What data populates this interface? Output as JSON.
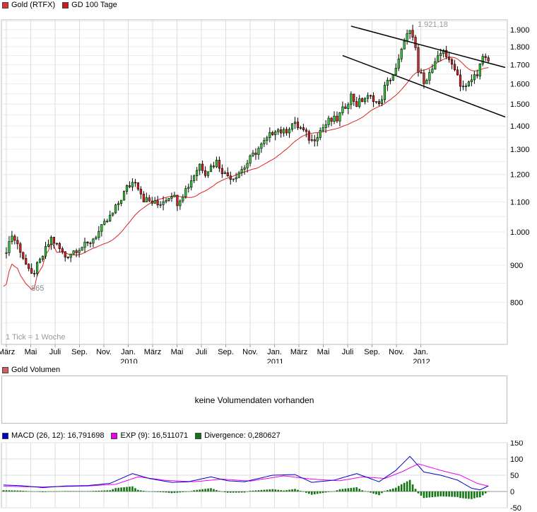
{
  "legend_main": [
    {
      "label": "Gold (RTFX)",
      "color": "#e03030"
    },
    {
      "label": "GD 100 Tage",
      "color": "#d01818"
    }
  ],
  "legend_volume": [
    {
      "label": "Gold Volumen",
      "color": "#d06060"
    }
  ],
  "legend_macd": [
    {
      "label": "MACD (26, 12): 16,791698",
      "color": "#0000cc"
    },
    {
      "label": "EXP (9): 16,511071",
      "color": "#ee00ee"
    },
    {
      "label": "Divergence: 0,280627",
      "color": "#117711"
    }
  ],
  "volume_message": "keine Volumendaten vorhanden",
  "tick_note": "1 Tick = 1 Woche",
  "price_annotations": {
    "low": "865",
    "high": "1.921,18"
  },
  "colors": {
    "up": "#33cc33",
    "down": "#dd2222",
    "ma": "#dd2222",
    "grid": "#dddddd",
    "channel": "#000000",
    "macd": "#0000cc",
    "signal": "#ee00ee",
    "divergence": "#117711"
  },
  "chart_data": [
    {
      "type": "candlestick",
      "title": "Gold (RTFX)",
      "y_axis_side": "right",
      "ylim": [
        700,
        1960
      ],
      "y_ticks": [
        800,
        900,
        1000,
        1100,
        1200,
        1300,
        1400,
        1500,
        1600,
        1700,
        1800,
        1900
      ],
      "y_tick_labels": [
        "800",
        "900",
        "1.000",
        "1.100",
        "1.200",
        "1.300",
        "1.400",
        "1.500",
        "1.600",
        "1.700",
        "1.800",
        "1.900"
      ],
      "x_month_labels": [
        "März",
        "Mai",
        "Juli",
        "Sep.",
        "Nov.",
        "Jan.",
        "März",
        "Mai",
        "Juli",
        "Sep.",
        "Nov.",
        "Jan.",
        "März",
        "Mai",
        "Juli",
        "Sep.",
        "Nov.",
        "Jan."
      ],
      "x_year_labels": [
        "2010",
        "2011",
        "2012"
      ],
      "close_anchors": [
        {
          "week": 0,
          "close": 925
        },
        {
          "week": 3,
          "close": 990
        },
        {
          "week": 6,
          "close": 945
        },
        {
          "week": 9,
          "close": 880
        },
        {
          "week": 10,
          "close": 870
        },
        {
          "week": 13,
          "close": 910
        },
        {
          "week": 17,
          "close": 980
        },
        {
          "week": 22,
          "close": 925
        },
        {
          "week": 26,
          "close": 948
        },
        {
          "week": 30,
          "close": 960
        },
        {
          "week": 34,
          "close": 1000
        },
        {
          "week": 39,
          "close": 1060
        },
        {
          "week": 44,
          "close": 1150
        },
        {
          "week": 47,
          "close": 1180
        },
        {
          "week": 50,
          "close": 1110
        },
        {
          "week": 55,
          "close": 1090
        },
        {
          "week": 60,
          "close": 1130
        },
        {
          "week": 62,
          "close": 1100
        },
        {
          "week": 66,
          "close": 1160
        },
        {
          "week": 70,
          "close": 1240
        },
        {
          "week": 72,
          "close": 1210
        },
        {
          "week": 76,
          "close": 1250
        },
        {
          "week": 79,
          "close": 1200
        },
        {
          "week": 82,
          "close": 1190
        },
        {
          "week": 86,
          "close": 1230
        },
        {
          "week": 90,
          "close": 1290
        },
        {
          "week": 94,
          "close": 1340
        },
        {
          "week": 97,
          "close": 1390
        },
        {
          "week": 100,
          "close": 1370
        },
        {
          "week": 103,
          "close": 1410
        },
        {
          "week": 106,
          "close": 1390
        },
        {
          "week": 108,
          "close": 1360
        },
        {
          "week": 110,
          "close": 1335
        },
        {
          "week": 113,
          "close": 1380
        },
        {
          "week": 116,
          "close": 1420
        },
        {
          "week": 119,
          "close": 1430
        },
        {
          "week": 121,
          "close": 1470
        },
        {
          "week": 124,
          "close": 1540
        },
        {
          "week": 126,
          "close": 1500
        },
        {
          "week": 129,
          "close": 1530
        },
        {
          "week": 132,
          "close": 1530
        },
        {
          "week": 134,
          "close": 1490
        },
        {
          "week": 136,
          "close": 1580
        },
        {
          "week": 138,
          "close": 1630
        },
        {
          "week": 140,
          "close": 1670
        },
        {
          "week": 142,
          "close": 1770
        },
        {
          "week": 143,
          "close": 1850
        },
        {
          "week": 145,
          "close": 1880
        },
        {
          "week": 147,
          "close": 1790
        },
        {
          "week": 148,
          "close": 1660
        },
        {
          "week": 150,
          "close": 1620
        },
        {
          "week": 152,
          "close": 1650
        },
        {
          "week": 154,
          "close": 1700
        },
        {
          "week": 156,
          "close": 1760
        },
        {
          "week": 157,
          "close": 1790
        },
        {
          "week": 159,
          "close": 1710
        },
        {
          "week": 161,
          "close": 1690
        },
        {
          "week": 163,
          "close": 1600
        },
        {
          "week": 165,
          "close": 1580
        },
        {
          "week": 167,
          "close": 1620
        },
        {
          "week": 169,
          "close": 1660
        },
        {
          "week": 171,
          "close": 1730
        },
        {
          "week": 173,
          "close": 1720
        }
      ],
      "series": [
        {
          "name": "Gold (RTFX)",
          "kind": "weekly candles"
        },
        {
          "name": "GD 100 Tage",
          "kind": "line"
        }
      ],
      "trend_channel": {
        "upper": [
          {
            "week": 124,
            "price": 1921
          },
          {
            "week": 179,
            "price": 1685
          }
        ],
        "lower": [
          {
            "week": 121,
            "price": 1750
          },
          {
            "week": 179,
            "price": 1440
          }
        ]
      },
      "annotations": [
        {
          "text": "865",
          "week": 10,
          "price": 865
        },
        {
          "text": "1.921,18",
          "week": 144,
          "price": 1921
        }
      ]
    },
    {
      "type": "macd",
      "ylim": [
        -50,
        150
      ],
      "y_ticks": [
        -50,
        0,
        50,
        100,
        150
      ],
      "y_tick_labels": [
        "-50",
        "0",
        "50",
        "100",
        "150"
      ],
      "macd_anchors": [
        {
          "week": 0,
          "value": 20
        },
        {
          "week": 6,
          "value": 18
        },
        {
          "week": 14,
          "value": 12
        },
        {
          "week": 22,
          "value": 17
        },
        {
          "week": 30,
          "value": 18
        },
        {
          "week": 38,
          "value": 25
        },
        {
          "week": 46,
          "value": 55
        },
        {
          "week": 52,
          "value": 40
        },
        {
          "week": 60,
          "value": 28
        },
        {
          "week": 66,
          "value": 30
        },
        {
          "week": 74,
          "value": 45
        },
        {
          "week": 80,
          "value": 33
        },
        {
          "week": 86,
          "value": 30
        },
        {
          "week": 96,
          "value": 50
        },
        {
          "week": 104,
          "value": 52
        },
        {
          "week": 110,
          "value": 28
        },
        {
          "week": 118,
          "value": 35
        },
        {
          "week": 126,
          "value": 55
        },
        {
          "week": 134,
          "value": 30
        },
        {
          "week": 140,
          "value": 65
        },
        {
          "week": 145,
          "value": 108
        },
        {
          "week": 150,
          "value": 60
        },
        {
          "week": 156,
          "value": 50
        },
        {
          "week": 162,
          "value": 35
        },
        {
          "week": 167,
          "value": 10
        },
        {
          "week": 170,
          "value": 5
        },
        {
          "week": 173,
          "value": 17
        }
      ],
      "signal_anchors": [
        {
          "week": 0,
          "value": 16
        },
        {
          "week": 14,
          "value": 14
        },
        {
          "week": 30,
          "value": 17
        },
        {
          "week": 40,
          "value": 22
        },
        {
          "week": 48,
          "value": 45
        },
        {
          "week": 58,
          "value": 34
        },
        {
          "week": 68,
          "value": 30
        },
        {
          "week": 78,
          "value": 38
        },
        {
          "week": 88,
          "value": 32
        },
        {
          "week": 100,
          "value": 48
        },
        {
          "week": 110,
          "value": 38
        },
        {
          "week": 120,
          "value": 33
        },
        {
          "week": 128,
          "value": 45
        },
        {
          "week": 136,
          "value": 40
        },
        {
          "week": 142,
          "value": 60
        },
        {
          "week": 148,
          "value": 85
        },
        {
          "week": 156,
          "value": 65
        },
        {
          "week": 163,
          "value": 50
        },
        {
          "week": 169,
          "value": 25
        },
        {
          "week": 173,
          "value": 16.5
        }
      ]
    }
  ]
}
